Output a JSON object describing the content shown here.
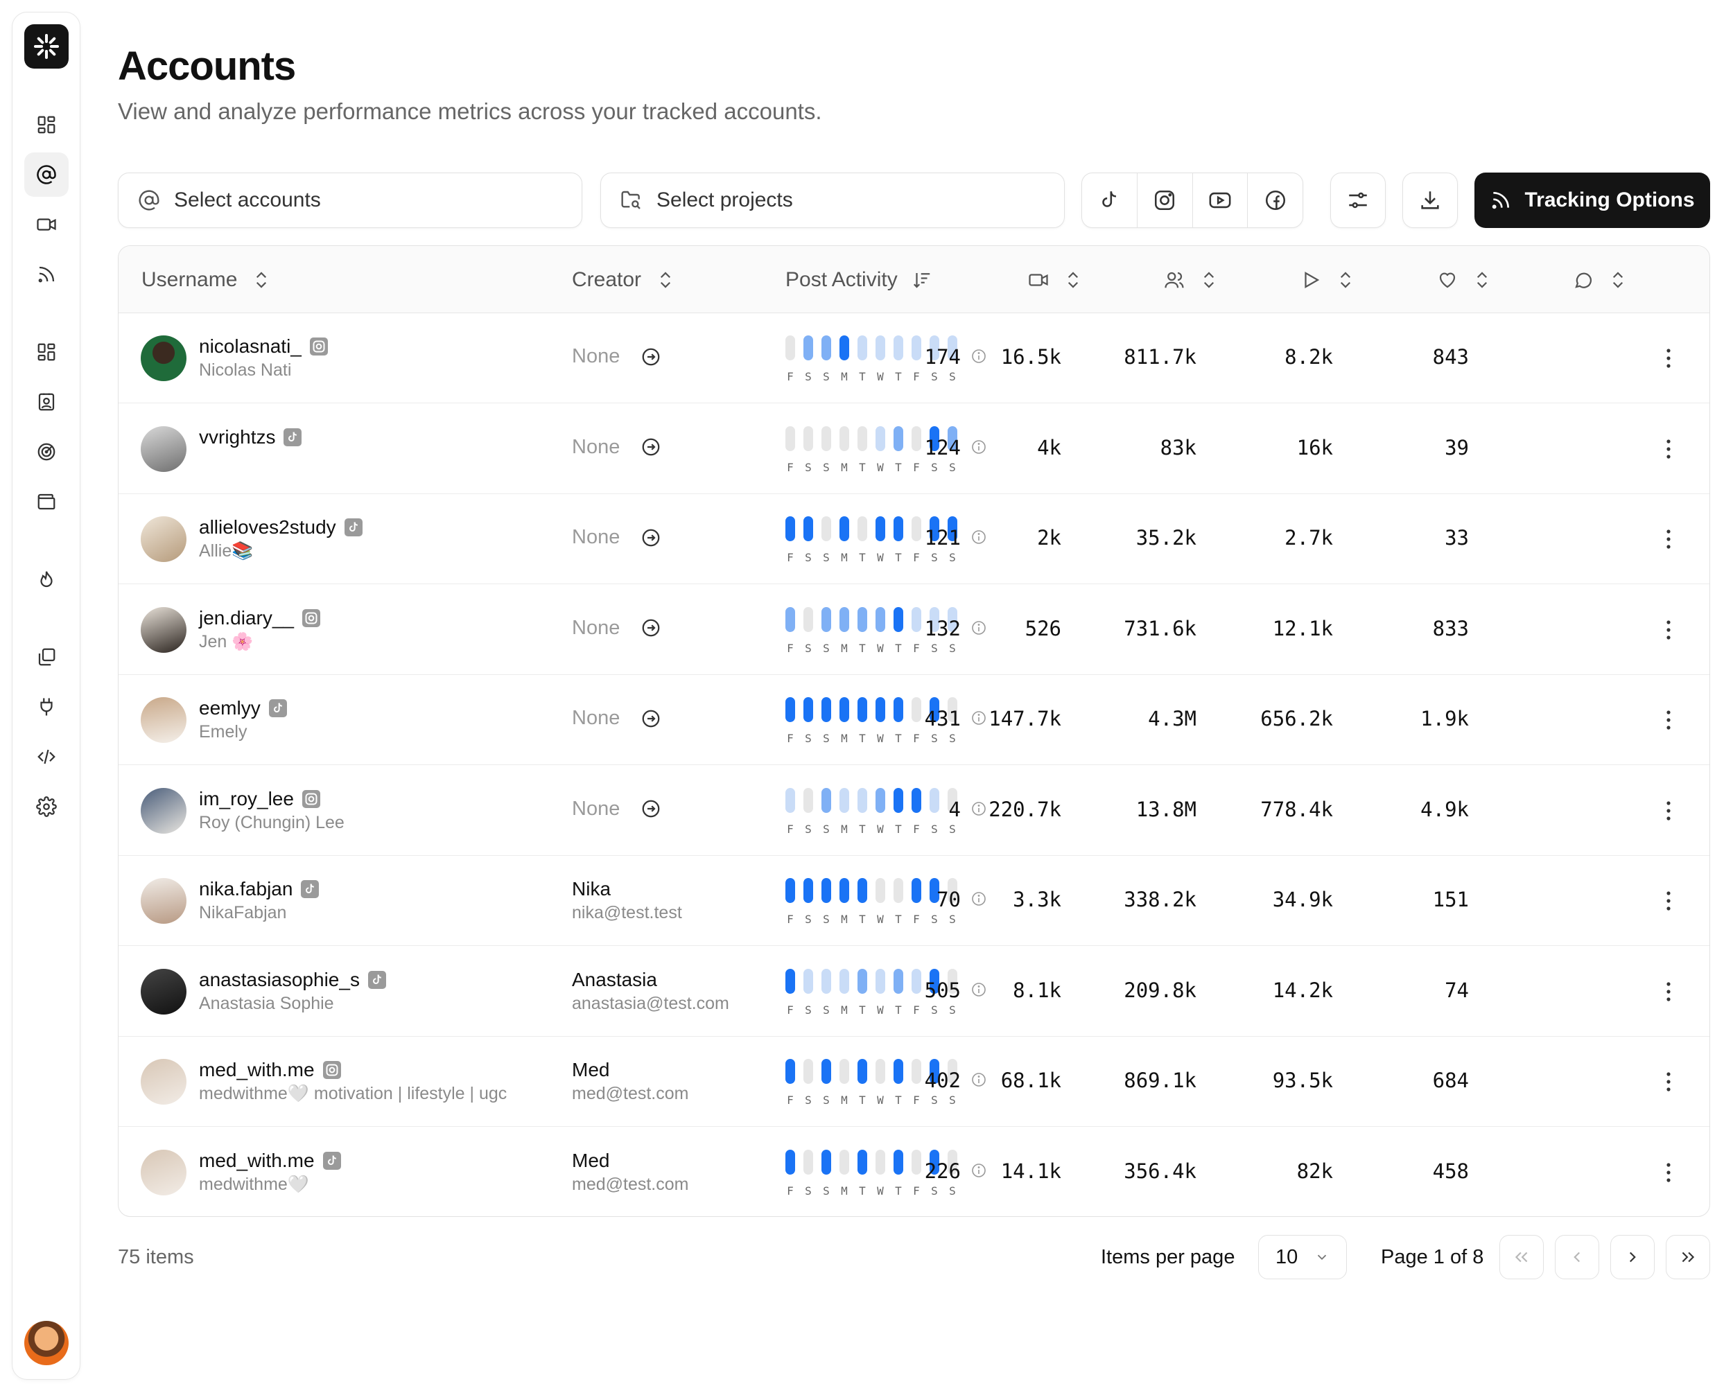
{
  "header": {
    "title": "Accounts",
    "subtitle": "View and analyze performance metrics across your tracked accounts."
  },
  "sidebar": {
    "icons": [
      "dashboard-icon",
      "at-sign-icon",
      "video-icon",
      "rss-icon",
      "grid-icon",
      "contact-card-icon",
      "target-icon",
      "wallet-icon",
      "flame-icon",
      "files-icon",
      "plug-icon",
      "code-icon",
      "settings-icon"
    ],
    "active": "at-sign-icon"
  },
  "toolbar": {
    "accounts_placeholder": "Select accounts",
    "projects_placeholder": "Select projects",
    "platforms": [
      "tiktok-icon",
      "instagram-icon",
      "youtube-icon",
      "facebook-icon"
    ],
    "tracking_label": "Tracking Options"
  },
  "table": {
    "columns": {
      "username": "Username",
      "creator": "Creator",
      "post_activity": "Post Activity",
      "metric_icons": [
        "video-icon",
        "users-icon",
        "play-icon",
        "heart-icon",
        "comment-icon"
      ]
    },
    "days": [
      "F",
      "S",
      "S",
      "M",
      "T",
      "W",
      "T",
      "F",
      "S",
      "S"
    ],
    "rows": [
      {
        "username": "nicolasnati_",
        "platform": "instagram",
        "display_name": "Nicolas Nati",
        "creator_name": "None",
        "creator_email": "",
        "activity": [
          0,
          2,
          2,
          3,
          1,
          1,
          1,
          1,
          1,
          1
        ],
        "videos": "174",
        "followers": "16.5k",
        "views": "811.7k",
        "likes": "8.2k",
        "comments": "843"
      },
      {
        "username": "vvrightzs",
        "platform": "tiktok",
        "display_name": "",
        "creator_name": "None",
        "creator_email": "",
        "activity": [
          0,
          0,
          0,
          0,
          0,
          1,
          2,
          0,
          3,
          2
        ],
        "videos": "124",
        "followers": "4k",
        "views": "83k",
        "likes": "16k",
        "comments": "39"
      },
      {
        "username": "allieloves2study",
        "platform": "tiktok",
        "display_name": "Allie📚",
        "creator_name": "None",
        "creator_email": "",
        "activity": [
          3,
          3,
          0,
          3,
          0,
          3,
          3,
          0,
          3,
          3
        ],
        "videos": "121",
        "followers": "2k",
        "views": "35.2k",
        "likes": "2.7k",
        "comments": "33"
      },
      {
        "username": "jen.diary__",
        "platform": "instagram",
        "display_name": "Jen 🌸",
        "creator_name": "None",
        "creator_email": "",
        "activity": [
          2,
          0,
          2,
          2,
          2,
          2,
          3,
          1,
          1,
          1
        ],
        "videos": "132",
        "followers": "526",
        "views": "731.6k",
        "likes": "12.1k",
        "comments": "833"
      },
      {
        "username": "eemlyy",
        "platform": "tiktok",
        "display_name": "Emely",
        "creator_name": "None",
        "creator_email": "",
        "activity": [
          3,
          3,
          3,
          3,
          3,
          3,
          3,
          0,
          3,
          0
        ],
        "videos": "431",
        "followers": "147.7k",
        "views": "4.3M",
        "likes": "656.2k",
        "comments": "1.9k"
      },
      {
        "username": "im_roy_lee",
        "platform": "instagram",
        "display_name": "Roy (Chungin) Lee",
        "creator_name": "None",
        "creator_email": "",
        "activity": [
          1,
          0,
          2,
          1,
          1,
          2,
          3,
          3,
          1,
          0
        ],
        "videos": "4",
        "followers": "220.7k",
        "views": "13.8M",
        "likes": "778.4k",
        "comments": "4.9k"
      },
      {
        "username": "nika.fabjan",
        "platform": "tiktok",
        "display_name": "NikaFabjan",
        "creator_name": "Nika",
        "creator_email": "nika@test.test",
        "activity": [
          3,
          3,
          3,
          3,
          3,
          0,
          0,
          3,
          3,
          0
        ],
        "videos": "70",
        "followers": "3.3k",
        "views": "338.2k",
        "likes": "34.9k",
        "comments": "151"
      },
      {
        "username": "anastasiasophie_s",
        "platform": "tiktok",
        "display_name": "Anastasia Sophie",
        "creator_name": "Anastasia",
        "creator_email": "anastasia@test.com",
        "activity": [
          3,
          1,
          1,
          1,
          2,
          1,
          2,
          1,
          3,
          0
        ],
        "videos": "505",
        "followers": "8.1k",
        "views": "209.8k",
        "likes": "14.2k",
        "comments": "74"
      },
      {
        "username": "med_with.me",
        "platform": "instagram",
        "display_name": "medwithme🤍 motivation | lifestyle | ugc",
        "creator_name": "Med",
        "creator_email": "med@test.com",
        "activity": [
          3,
          0,
          3,
          0,
          3,
          0,
          3,
          0,
          3,
          0
        ],
        "videos": "402",
        "followers": "68.1k",
        "views": "869.1k",
        "likes": "93.5k",
        "comments": "684"
      },
      {
        "username": "med_with.me",
        "platform": "tiktok",
        "display_name": "medwithme🤍",
        "creator_name": "Med",
        "creator_email": "med@test.com",
        "activity": [
          3,
          0,
          3,
          0,
          3,
          0,
          3,
          0,
          3,
          0
        ],
        "videos": "226",
        "followers": "14.1k",
        "views": "356.4k",
        "likes": "82k",
        "comments": "458"
      }
    ]
  },
  "footer": {
    "items_count": "75 items",
    "items_per_page_label": "Items per page",
    "items_per_page": "10",
    "page_info": "Page 1 of 8"
  },
  "colors": {
    "accent_strong": "#1a73f5",
    "accent_medium": "#7fb0f5",
    "accent_light": "#c9dcf7",
    "bar_empty": "#e6e6e6",
    "primary_button": "#141414"
  }
}
